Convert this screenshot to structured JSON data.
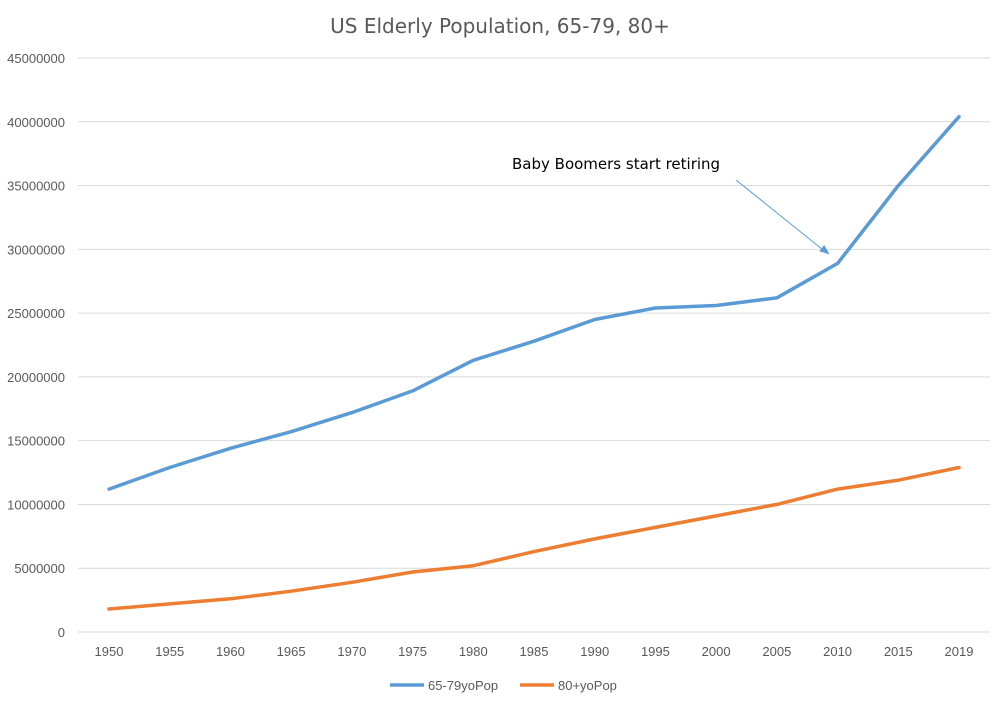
{
  "chart_data": {
    "type": "line",
    "title": "US Elderly Population, 65-79, 80+",
    "xlabel": "",
    "ylabel": "",
    "x": [
      "1950",
      "1955",
      "1960",
      "1965",
      "1970",
      "1975",
      "1980",
      "1985",
      "1990",
      "1995",
      "2000",
      "2005",
      "2010",
      "2015",
      "2019"
    ],
    "ylim": [
      0,
      45000000
    ],
    "yticks": [
      0,
      5000000,
      10000000,
      15000000,
      20000000,
      25000000,
      30000000,
      35000000,
      40000000,
      45000000
    ],
    "grid": true,
    "legend_position": "bottom",
    "series": [
      {
        "name": "65-79yoPop",
        "color": "#5b9bd5",
        "values": [
          11200000,
          12900000,
          14400000,
          15700000,
          17200000,
          18900000,
          21300000,
          22800000,
          24500000,
          25400000,
          25600000,
          26200000,
          28900000,
          35000000,
          40400000
        ]
      },
      {
        "name": "80+yoPop",
        "color": "#ed7d31",
        "values": [
          1800000,
          2200000,
          2600000,
          3200000,
          3900000,
          4700000,
          5200000,
          6300000,
          7300000,
          8200000,
          9100000,
          10000000,
          11200000,
          11900000,
          12900000
        ]
      }
    ],
    "annotations": [
      {
        "text": "Baby Boomers start retiring",
        "target_x": "2010",
        "target_y": 30000000
      }
    ]
  }
}
